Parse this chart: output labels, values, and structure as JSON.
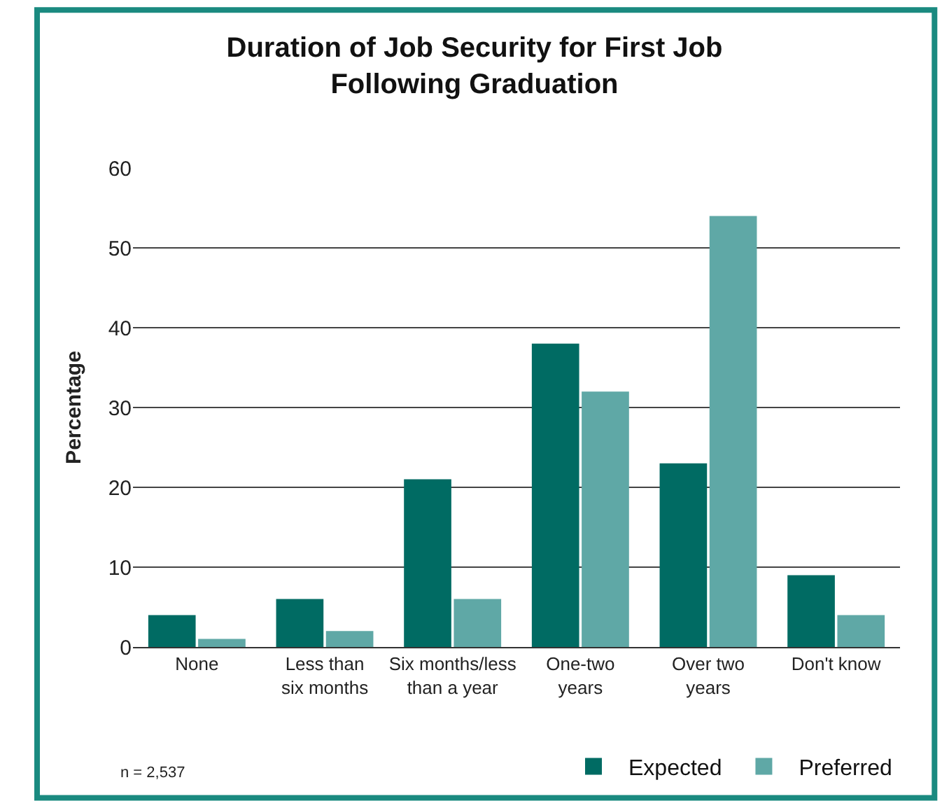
{
  "chart_data": {
    "type": "bar",
    "title": "Duration of Job Security for First Job\nFollowing Graduation",
    "ylabel": "Percentage",
    "categories": [
      "None",
      "Less than\nsix months",
      "Six months/less\nthan a year",
      "One-two\nyears",
      "Over two\nyears",
      "Don't know"
    ],
    "series": [
      {
        "name": "Expected",
        "color": "#006b63",
        "values": [
          4,
          6,
          21,
          38,
          23,
          9
        ]
      },
      {
        "name": "Preferred",
        "color": "#5fa8a6",
        "values": [
          1,
          2,
          6,
          32,
          54,
          4
        ]
      }
    ],
    "ylim": [
      0,
      60
    ],
    "yticks": [
      0,
      10,
      20,
      30,
      40,
      50,
      60
    ],
    "grid": "y",
    "legend": "bottom right",
    "annotations": [
      "n = 2,537"
    ]
  }
}
